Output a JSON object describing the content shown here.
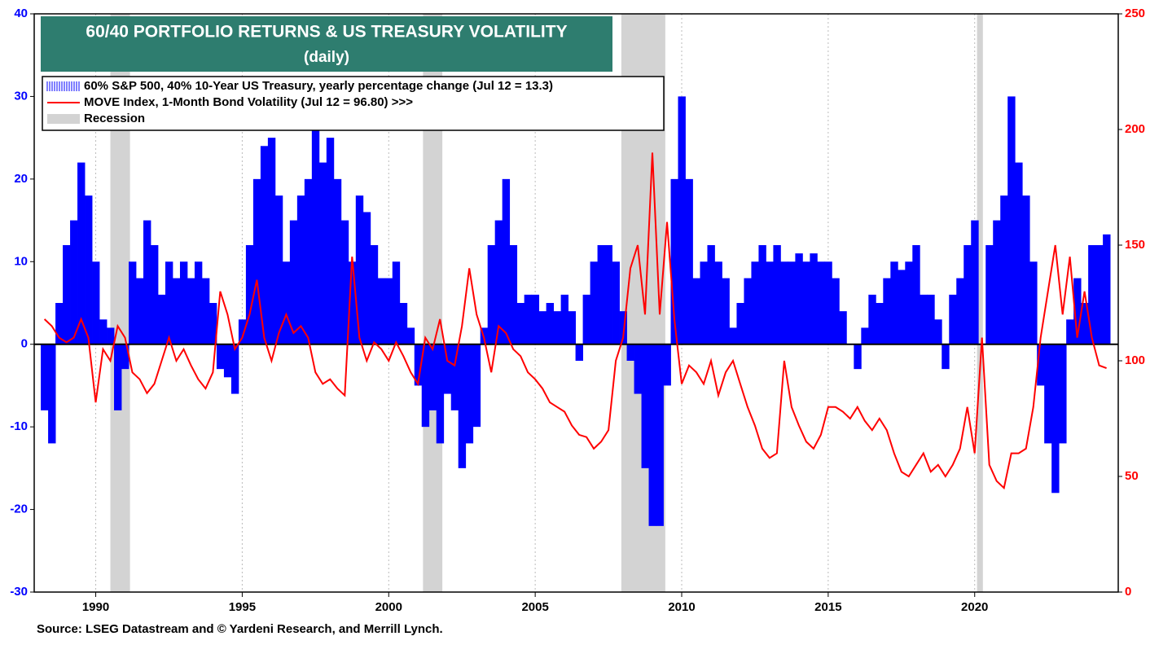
{
  "chart_data": {
    "type": "bar-line",
    "title": "60/40 PORTFOLIO RETURNS & US TREASURY VOLATILITY",
    "subtitle": "(daily)",
    "source": "Source: LSEG Datastream and © Yardeni Research, and Merrill Lynch.",
    "x": [
      1988.25,
      1988.5,
      1988.75,
      1989,
      1989.25,
      1989.5,
      1989.75,
      1990,
      1990.25,
      1990.5,
      1990.75,
      1991,
      1991.25,
      1991.5,
      1991.75,
      1992,
      1992.25,
      1992.5,
      1992.75,
      1993,
      1993.25,
      1993.5,
      1993.75,
      1994,
      1994.25,
      1994.5,
      1994.75,
      1995,
      1995.25,
      1995.5,
      1995.75,
      1996,
      1996.25,
      1996.5,
      1996.75,
      1997,
      1997.25,
      1997.5,
      1997.75,
      1998,
      1998.25,
      1998.5,
      1998.75,
      1999,
      1999.25,
      1999.5,
      1999.75,
      2000,
      2000.25,
      2000.5,
      2000.75,
      2001,
      2001.25,
      2001.5,
      2001.75,
      2002,
      2002.25,
      2002.5,
      2002.75,
      2003,
      2003.25,
      2003.5,
      2003.75,
      2004,
      2004.25,
      2004.5,
      2004.75,
      2005,
      2005.25,
      2005.5,
      2005.75,
      2006,
      2006.25,
      2006.5,
      2006.75,
      2007,
      2007.25,
      2007.5,
      2007.75,
      2008,
      2008.25,
      2008.5,
      2008.75,
      2009,
      2009.25,
      2009.5,
      2009.75,
      2010,
      2010.25,
      2010.5,
      2010.75,
      2011,
      2011.25,
      2011.5,
      2011.75,
      2012,
      2012.25,
      2012.5,
      2012.75,
      2013,
      2013.25,
      2013.5,
      2013.75,
      2014,
      2014.25,
      2014.5,
      2014.75,
      2015,
      2015.25,
      2015.5,
      2015.75,
      2016,
      2016.25,
      2016.5,
      2016.75,
      2017,
      2017.25,
      2017.5,
      2017.75,
      2018,
      2018.25,
      2018.5,
      2018.75,
      2019,
      2019.25,
      2019.5,
      2019.75,
      2020,
      2020.25,
      2020.5,
      2020.75,
      2021,
      2021.25,
      2021.5,
      2021.75,
      2022,
      2022.25,
      2022.5,
      2022.75,
      2023,
      2023.25,
      2023.5,
      2023.75,
      2024,
      2024.25,
      2024.5
    ],
    "series": [
      {
        "name": "60% S&P 500, 40% 10-Year US Treasury, yearly percentage change (Jul 12 = 13.3)",
        "type": "bar",
        "color": "#0000ff",
        "values": [
          -8,
          -12,
          5,
          12,
          15,
          22,
          18,
          10,
          3,
          2,
          -8,
          -3,
          10,
          8,
          15,
          12,
          6,
          10,
          8,
          10,
          8,
          10,
          8,
          5,
          -3,
          -4,
          -6,
          3,
          12,
          20,
          24,
          25,
          18,
          10,
          15,
          18,
          20,
          27,
          22,
          25,
          20,
          15,
          10,
          18,
          16,
          12,
          8,
          8,
          10,
          5,
          2,
          -5,
          -10,
          -8,
          -12,
          -6,
          -8,
          -15,
          -12,
          -10,
          2,
          12,
          15,
          20,
          12,
          5,
          6,
          6,
          4,
          5,
          4,
          6,
          4,
          -2,
          6,
          10,
          12,
          12,
          10,
          4,
          -2,
          -6,
          -15,
          -22,
          -22,
          -5,
          20,
          30,
          20,
          8,
          10,
          12,
          10,
          8,
          2,
          5,
          8,
          10,
          12,
          10,
          12,
          10,
          10,
          11,
          10,
          11,
          10,
          10,
          8,
          4,
          0,
          -3,
          2,
          6,
          5,
          8,
          10,
          9,
          10,
          12,
          6,
          6,
          3,
          -3,
          6,
          8,
          12,
          15,
          0,
          12,
          15,
          18,
          30,
          22,
          18,
          10,
          -5,
          -12,
          -18,
          -12,
          3,
          8,
          5,
          12,
          12,
          13.3
        ]
      },
      {
        "name": "MOVE Index, 1-Month Bond Volatility (Jul 12 = 96.80) >>>",
        "type": "line",
        "axis": "y2",
        "color": "#ff0000",
        "values": [
          118,
          115,
          110,
          108,
          110,
          118,
          110,
          82,
          105,
          100,
          115,
          110,
          95,
          92,
          86,
          90,
          100,
          110,
          100,
          105,
          98,
          92,
          88,
          95,
          130,
          120,
          105,
          110,
          120,
          135,
          110,
          100,
          112,
          120,
          112,
          115,
          110,
          95,
          90,
          92,
          88,
          85,
          145,
          110,
          100,
          108,
          105,
          100,
          108,
          102,
          95,
          90,
          110,
          105,
          118,
          100,
          98,
          115,
          140,
          120,
          110,
          95,
          115,
          112,
          105,
          102,
          95,
          92,
          88,
          82,
          80,
          78,
          72,
          68,
          67,
          62,
          65,
          70,
          100,
          110,
          140,
          150,
          120,
          190,
          120,
          160,
          118,
          90,
          98,
          95,
          90,
          100,
          85,
          95,
          100,
          90,
          80,
          72,
          62,
          58,
          60,
          100,
          80,
          72,
          65,
          62,
          68,
          80,
          80,
          78,
          75,
          80,
          74,
          70,
          75,
          70,
          60,
          52,
          50,
          55,
          60,
          52,
          55,
          50,
          55,
          62,
          80,
          60,
          110,
          55,
          48,
          45,
          60,
          60,
          62,
          80,
          110,
          130,
          150,
          120,
          145,
          110,
          130,
          110,
          98,
          96.8
        ]
      }
    ],
    "recession_label": "Recession",
    "recession_color": "#d3d3d3",
    "recessions": [
      [
        1990.5,
        1991.17
      ],
      [
        2001.17,
        2001.83
      ],
      [
        2007.94,
        2009.44
      ],
      [
        2020.08,
        2020.28
      ]
    ],
    "xlim": [
      1987.9,
      2024.9
    ],
    "xticks": [
      1990,
      1995,
      2000,
      2005,
      2010,
      2015,
      2020
    ],
    "ylim": [
      -30,
      40
    ],
    "yticks": [
      -30,
      -20,
      -10,
      0,
      10,
      20,
      30,
      40
    ],
    "y2lim": [
      0,
      250
    ],
    "y2ticks": [
      0,
      50,
      100,
      150,
      200,
      250
    ],
    "grid": "x"
  }
}
